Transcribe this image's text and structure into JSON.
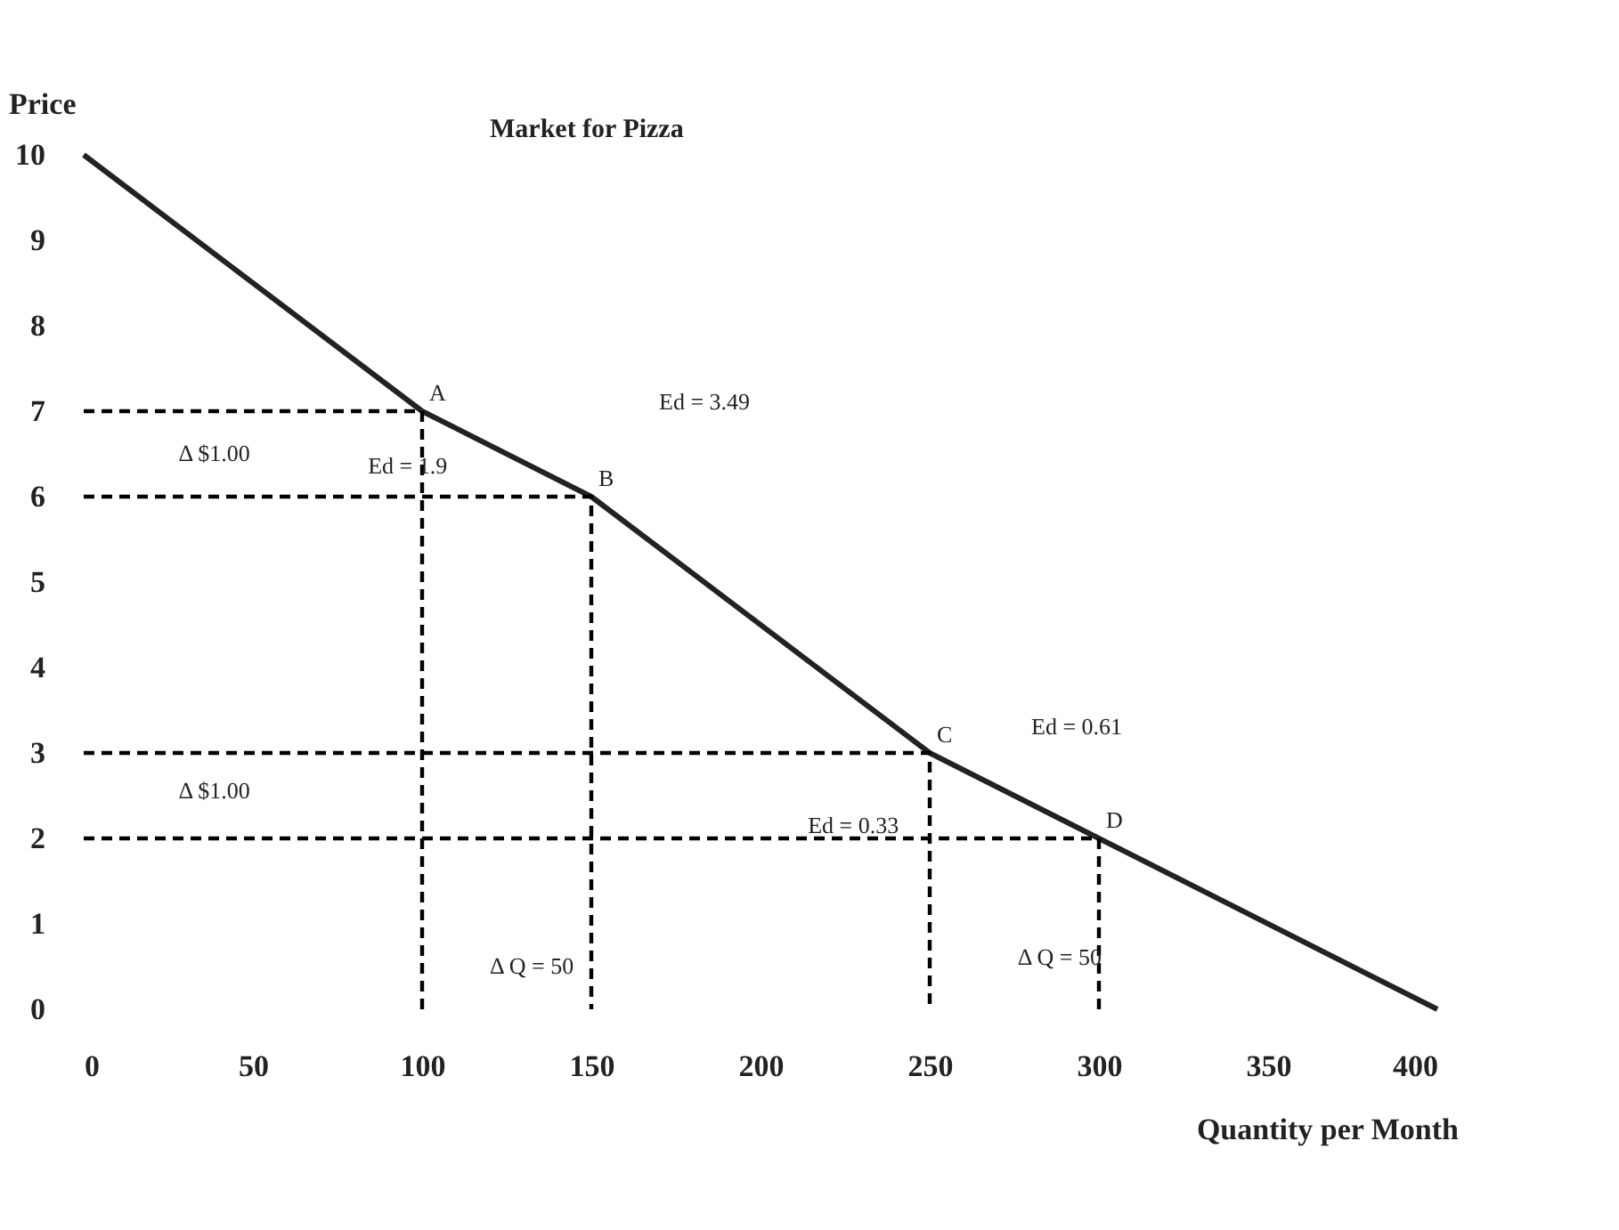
{
  "chart_data": {
    "type": "line",
    "title": "Market for Pizza",
    "xlabel": "Quantity per Month",
    "ylabel": "Price",
    "xlim": [
      0,
      400
    ],
    "xticks": [
      0,
      50,
      100,
      150,
      200,
      250,
      300,
      350,
      400
    ],
    "ylim": [
      0,
      10
    ],
    "yticks": [
      0,
      1,
      2,
      3,
      4,
      5,
      6,
      7,
      8,
      9,
      10
    ],
    "grid": false,
    "marker": "none",
    "series": [
      {
        "x": [
          0,
          100,
          150,
          250,
          300,
          400
        ],
        "values": [
          10,
          7,
          6,
          3,
          2,
          0
        ],
        "color": "#222222",
        "line_style": "solid"
      },
      {
        "x": [
          0,
          100,
          100
        ],
        "values": [
          7,
          7,
          0
        ],
        "color": "#000000",
        "line_style": "dashed"
      },
      {
        "x": [
          0,
          150,
          150
        ],
        "values": [
          6,
          6,
          0
        ],
        "color": "#000000",
        "line_style": "dashed"
      },
      {
        "x": [
          0,
          250,
          250
        ],
        "values": [
          3,
          3,
          0
        ],
        "color": "#000000",
        "line_style": "dashed"
      },
      {
        "x": [
          0,
          300,
          300
        ],
        "values": [
          2,
          2,
          0
        ],
        "color": "#000000",
        "line_style": "dashed"
      }
    ],
    "annotations": [
      {
        "text": "A",
        "x": 100,
        "y": 7
      },
      {
        "text": "B",
        "x": 150,
        "y": 6
      },
      {
        "text": "C",
        "x": 250,
        "y": 3
      },
      {
        "text": "D",
        "x": 300,
        "y": 2
      },
      "Ed = 3.49",
      "Ed = 1.9",
      "Ed = 0.61",
      "Ed = 0.33",
      "Δ $1.00",
      "Δ $1.00",
      "Δ Q = 50",
      "Δ Q = 50"
    ]
  }
}
